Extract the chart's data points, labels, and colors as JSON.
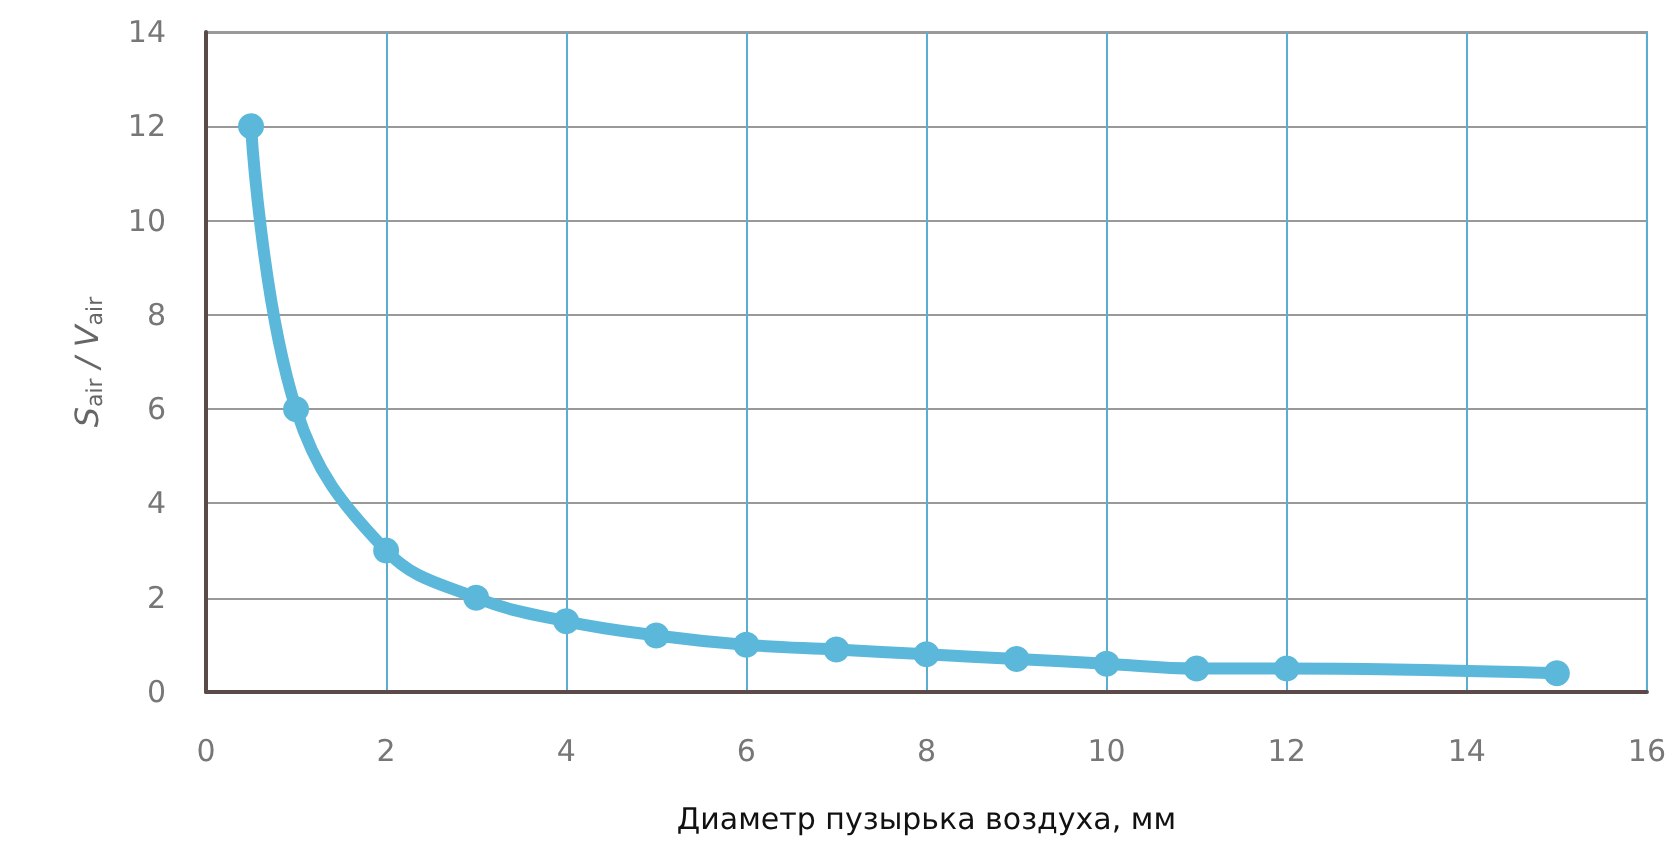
{
  "chart_data": {
    "type": "line",
    "xlabel": "Диаметр пузырька воздуха, мм",
    "ylabel": "S$_{air}$ / V$_{air}$",
    "x": [
      0.5,
      1,
      2,
      3,
      4,
      5,
      6,
      7,
      8,
      9,
      10,
      11,
      12,
      15
    ],
    "series": [
      {
        "color": "#5bb8da",
        "values": [
          12,
          6,
          3,
          2,
          1.5,
          1.2,
          1,
          0.9,
          0.8,
          0.7,
          0.6,
          0.5,
          0.5,
          0.4
        ]
      }
    ],
    "xlim": [
      0,
      16
    ],
    "xticks": [
      0,
      2,
      4,
      6,
      8,
      10,
      12,
      14,
      16
    ],
    "ylim": [
      0,
      14
    ],
    "yticks": [
      0,
      2,
      4,
      6,
      8,
      10,
      12,
      14
    ],
    "grid": true,
    "marker": "circle",
    "line_style": "solid"
  }
}
